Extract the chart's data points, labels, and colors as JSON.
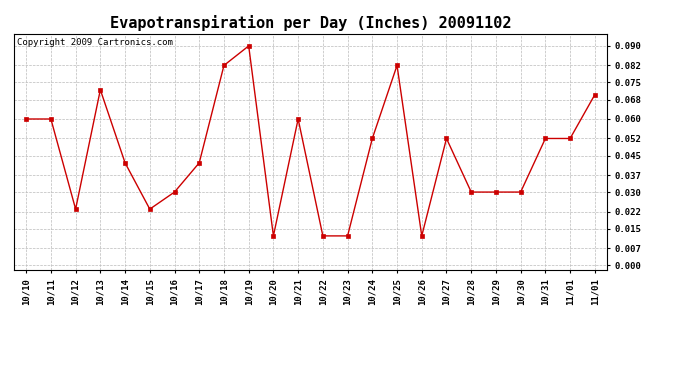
{
  "title": "Evapotranspiration per Day (Inches) 20091102",
  "copyright_text": "Copyright 2009 Cartronics.com",
  "labels": [
    "10/10",
    "10/11",
    "10/12",
    "10/13",
    "10/14",
    "10/15",
    "10/16",
    "10/17",
    "10/18",
    "10/19",
    "10/20",
    "10/21",
    "10/22",
    "10/23",
    "10/24",
    "10/25",
    "10/26",
    "10/27",
    "10/28",
    "10/29",
    "10/30",
    "10/31",
    "11/01",
    "11/01"
  ],
  "values": [
    0.06,
    0.06,
    0.023,
    0.072,
    0.042,
    0.023,
    0.03,
    0.042,
    0.082,
    0.09,
    0.012,
    0.06,
    0.012,
    0.012,
    0.052,
    0.082,
    0.012,
    0.052,
    0.03,
    0.03,
    0.03,
    0.052,
    0.052,
    0.07
  ],
  "line_color": "#cc0000",
  "marker": "s",
  "marker_size": 2.5,
  "bg_color": "#ffffff",
  "grid_color": "#bbbbbb",
  "yticks": [
    0.0,
    0.007,
    0.015,
    0.022,
    0.03,
    0.037,
    0.045,
    0.052,
    0.06,
    0.068,
    0.075,
    0.082,
    0.09
  ],
  "ylim": [
    -0.002,
    0.095
  ],
  "title_fontsize": 11,
  "copyright_fontsize": 6.5,
  "tick_fontsize": 6.5,
  "plot_bg_color": "#ffffff",
  "figsize": [
    6.9,
    3.75
  ],
  "dpi": 100
}
